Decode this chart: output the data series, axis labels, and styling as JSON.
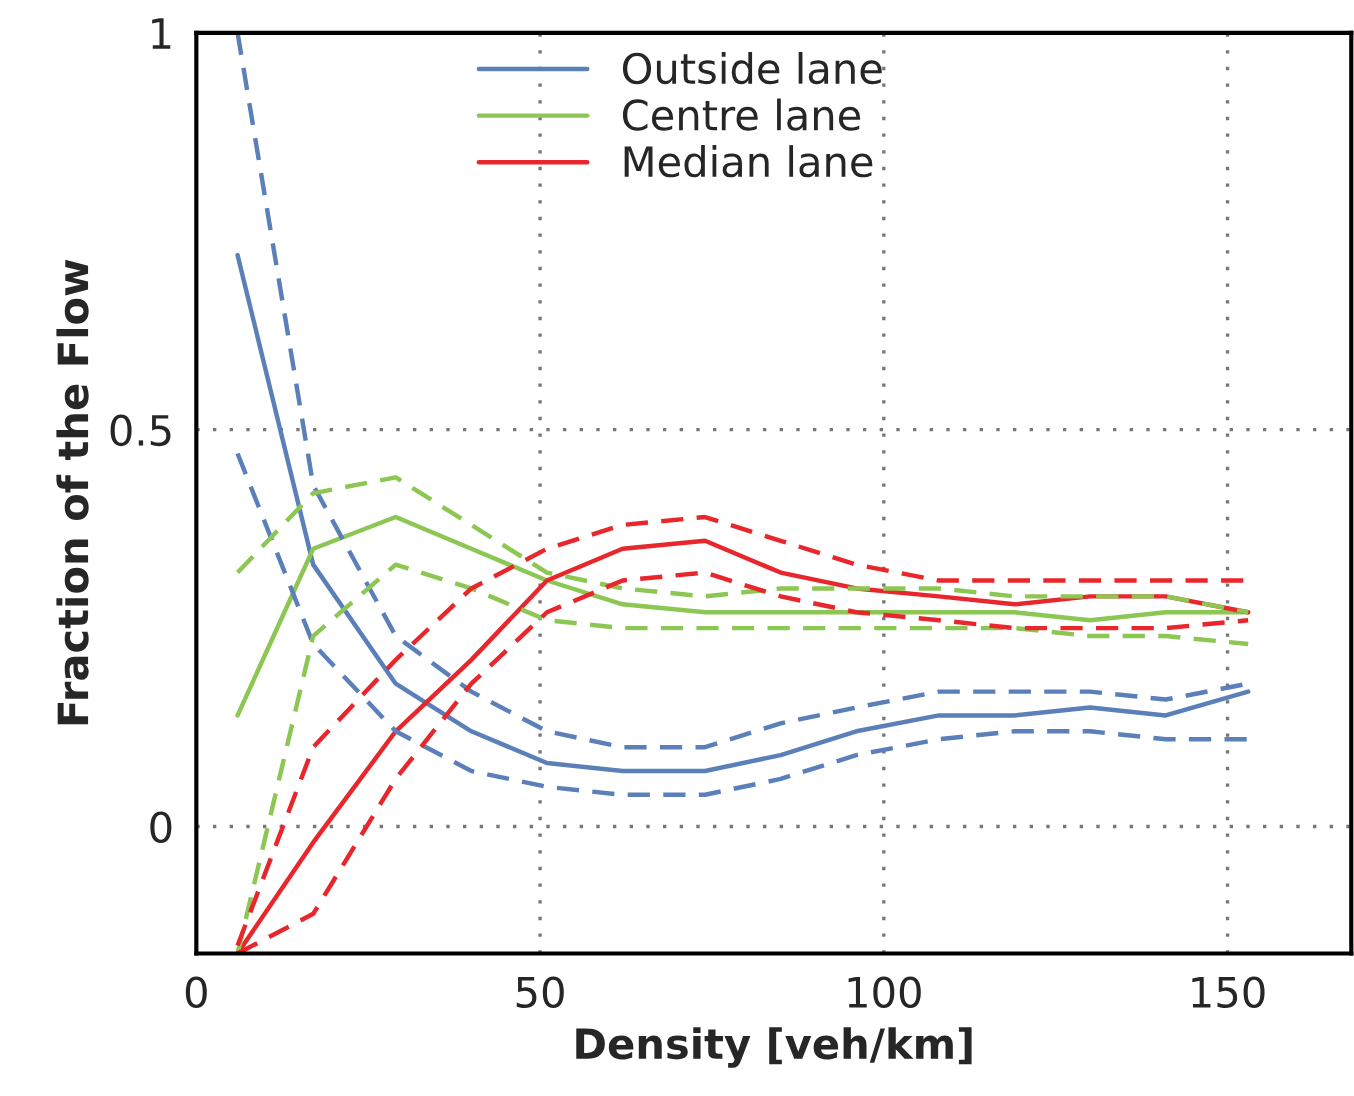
{
  "chart_data": {
    "type": "line",
    "xlabel": "Density [veh/km]",
    "ylabel": "Fraction of the Flow",
    "x": [
      6,
      17,
      29,
      40,
      51,
      62,
      74,
      85,
      96,
      108,
      119,
      130,
      141,
      153
    ],
    "series": [
      {
        "name": "Outside lane",
        "color": "#5b7fb9",
        "values": [
          0.72,
          0.33,
          0.18,
          0.12,
          0.08,
          0.07,
          0.07,
          0.09,
          0.12,
          0.14,
          0.14,
          0.15,
          0.14,
          0.17
        ]
      },
      {
        "name": "Centre lane",
        "color": "#8cc653",
        "values": [
          0.14,
          0.35,
          0.39,
          0.35,
          0.31,
          0.28,
          0.27,
          0.27,
          0.27,
          0.27,
          0.27,
          0.26,
          0.27,
          0.27
        ]
      },
      {
        "name": "Median lane",
        "color": "#e8262b",
        "values": [
          -0.16,
          -0.02,
          0.12,
          0.21,
          0.31,
          0.35,
          0.36,
          0.32,
          0.3,
          0.29,
          0.28,
          0.29,
          0.29,
          0.27
        ]
      },
      {
        "color": "#5b7fb9",
        "line_style": "dashed",
        "values": [
          1.0,
          0.43,
          0.24,
          0.17,
          0.12,
          0.1,
          0.1,
          0.13,
          0.15,
          0.17,
          0.17,
          0.17,
          0.16,
          0.18
        ]
      },
      {
        "color": "#5b7fb9",
        "line_style": "dashed",
        "values": [
          0.47,
          0.23,
          0.12,
          0.07,
          0.05,
          0.04,
          0.04,
          0.06,
          0.09,
          0.11,
          0.12,
          0.12,
          0.11,
          0.11
        ]
      },
      {
        "color": "#8cc653",
        "line_style": "dashed",
        "values": [
          0.32,
          0.42,
          0.44,
          0.38,
          0.32,
          0.3,
          0.29,
          0.3,
          0.3,
          0.3,
          0.29,
          0.29,
          0.29,
          0.27
        ]
      },
      {
        "color": "#8cc653",
        "line_style": "dashed",
        "values": [
          -0.16,
          0.24,
          0.33,
          0.3,
          0.26,
          0.25,
          0.25,
          0.25,
          0.25,
          0.25,
          0.25,
          0.24,
          0.24,
          0.23
        ]
      },
      {
        "color": "#e8262b",
        "line_style": "dashed",
        "values": [
          -0.15,
          0.1,
          0.21,
          0.3,
          0.35,
          0.38,
          0.39,
          0.36,
          0.33,
          0.31,
          0.31,
          0.31,
          0.31,
          0.31
        ]
      },
      {
        "color": "#e8262b",
        "line_style": "dashed",
        "values": [
          -0.16,
          -0.11,
          0.06,
          0.18,
          0.27,
          0.31,
          0.32,
          0.29,
          0.27,
          0.26,
          0.25,
          0.25,
          0.25,
          0.26
        ]
      }
    ],
    "xlim": [
      0,
      168
    ],
    "xticks": [
      0,
      50,
      100,
      150
    ],
    "ylim": [
      -0.16,
      1.0
    ],
    "yticks": [
      0,
      0.5,
      1
    ],
    "grid": true,
    "legend": "top",
    "marker": "none",
    "line_style": "solid"
  }
}
